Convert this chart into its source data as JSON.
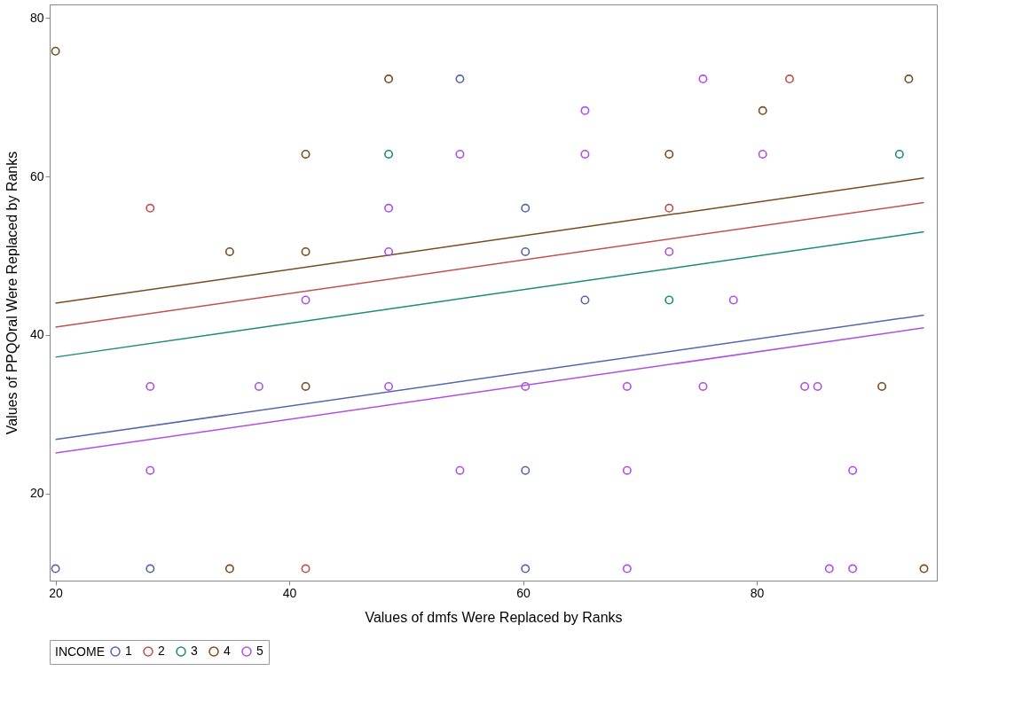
{
  "chart_data": {
    "type": "scatter",
    "xlabel": "Values of dmfs Were Replaced by Ranks",
    "ylabel": "Values of PPQOral Were Replaced by Ranks",
    "legend_title": "INCOME",
    "legend": "bottom",
    "grid": false,
    "marker": "circle",
    "xlim": [
      19.5,
      95.4
    ],
    "ylim": [
      9,
      81.7
    ],
    "xticks": [
      20,
      40,
      60,
      80
    ],
    "yticks": [
      20,
      40,
      60,
      80
    ],
    "series": [
      {
        "name": "1",
        "color": "#5566aa",
        "x": [
          54.6,
          60.2,
          60.2,
          65.3,
          60.2,
          60.2,
          28.1,
          20
        ],
        "values": [
          72.3,
          56,
          50.5,
          44.4,
          22.9,
          10.5,
          10.5,
          10.5
        ]
      },
      {
        "name": "2",
        "color": "#c0504d",
        "x": [
          28.1,
          41.4,
          72.5,
          82.8
        ],
        "values": [
          56,
          10.5,
          56,
          72.3
        ]
      },
      {
        "name": "3",
        "color": "#1b8a7a",
        "x": [
          48.5,
          72.5,
          92.2
        ],
        "values": [
          62.8,
          44.4,
          62.8
        ]
      },
      {
        "name": "4",
        "color": "#7a4a1e",
        "x": [
          20,
          48.5,
          41.4,
          34.9,
          41.4,
          41.4,
          34.9,
          72.5,
          80.5,
          93.0,
          90.7,
          94.3
        ],
        "values": [
          75.8,
          72.3,
          62.8,
          50.5,
          50.5,
          33.5,
          10.5,
          62.8,
          68.3,
          72.3,
          33.5,
          10.5
        ]
      },
      {
        "name": "5",
        "color": "#b04ee8",
        "x": [
          28.1,
          28.1,
          37.4,
          41.4,
          48.5,
          48.5,
          48.5,
          54.6,
          54.6,
          60.2,
          65.3,
          65.3,
          68.9,
          68.9,
          68.9,
          72.5,
          75.4,
          78.0,
          75.4,
          80.5,
          84.1,
          85.2,
          86.2,
          88.2,
          88.2
        ],
        "values": [
          33.5,
          22.9,
          33.5,
          44.4,
          56,
          50.5,
          33.5,
          62.8,
          22.9,
          33.5,
          68.3,
          62.8,
          33.5,
          22.9,
          10.5,
          50.5,
          72.3,
          44.4,
          33.5,
          62.8,
          33.5,
          33.5,
          10.5,
          10.5,
          22.9
        ]
      },
      {
        "type": "line",
        "marker": "none",
        "line_style": "solid",
        "color": "#5566aa",
        "x": [
          20,
          94.3
        ],
        "values": [
          26.8,
          42.5
        ]
      },
      {
        "type": "line",
        "marker": "none",
        "line_style": "solid",
        "color": "#c0504d",
        "x": [
          20,
          94.3
        ],
        "values": [
          41,
          56.7
        ]
      },
      {
        "type": "line",
        "marker": "none",
        "line_style": "solid",
        "color": "#1b8a7a",
        "x": [
          20,
          94.3
        ],
        "values": [
          37.2,
          53
        ]
      },
      {
        "type": "line",
        "marker": "none",
        "line_style": "solid",
        "color": "#7a4a1e",
        "x": [
          20,
          94.3
        ],
        "values": [
          44,
          59.8
        ]
      },
      {
        "type": "line",
        "marker": "none",
        "line_style": "solid",
        "color": "#b04ee8",
        "x": [
          20,
          94.3
        ],
        "values": [
          25.1,
          40.9
        ]
      }
    ]
  }
}
